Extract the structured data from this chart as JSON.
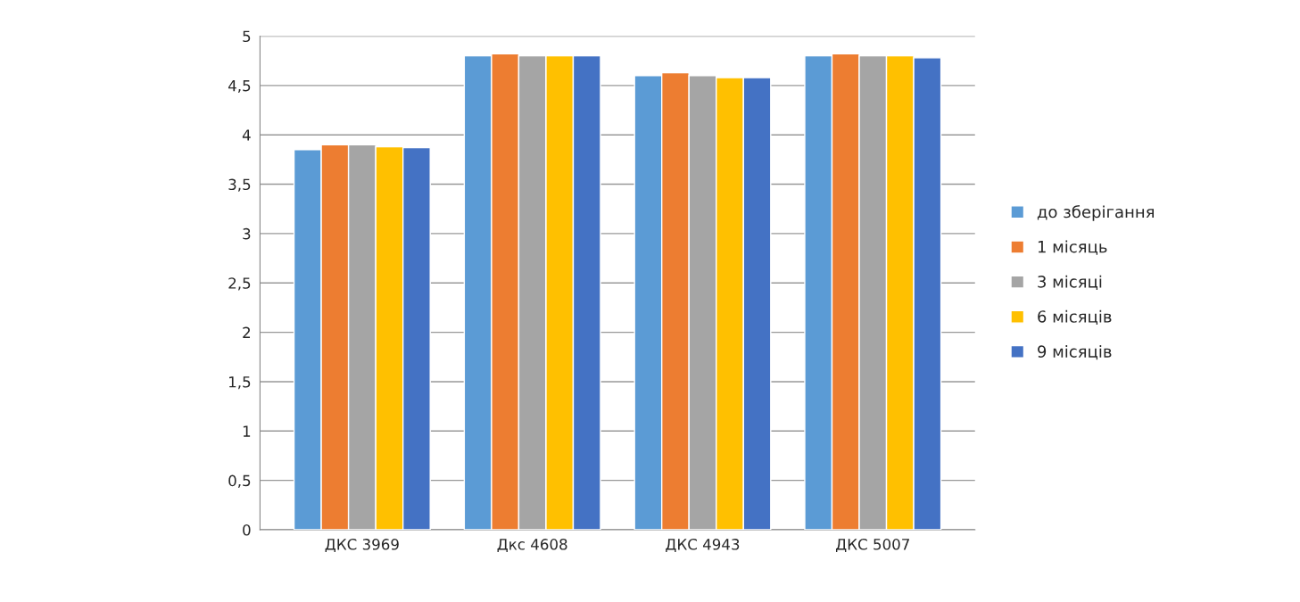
{
  "chart_data": {
    "type": "bar",
    "categories": [
      "ДКС 3969",
      "Дкс 4608",
      "ДКС 4943",
      "ДКС 5007"
    ],
    "series": [
      {
        "name": "до зберігання",
        "color": "#5b9bd5",
        "values": [
          3.85,
          4.8,
          4.6,
          4.8
        ]
      },
      {
        "name": "1 місяць",
        "color": "#ed7d31",
        "values": [
          3.9,
          4.82,
          4.63,
          4.82
        ]
      },
      {
        "name": "3 місяці",
        "color": "#a5a5a5",
        "values": [
          3.9,
          4.8,
          4.6,
          4.8
        ]
      },
      {
        "name": "6 місяців",
        "color": "#ffc000",
        "values": [
          3.88,
          4.8,
          4.58,
          4.8
        ]
      },
      {
        "name": "9 місяців",
        "color": "#4472c4",
        "values": [
          3.87,
          4.8,
          4.58,
          4.78
        ]
      }
    ],
    "ylim": [
      0,
      5
    ],
    "yticks": [
      0,
      {
        "value": 0.5,
        "label": "0,5"
      },
      1,
      {
        "value": 1.5,
        "label": "1,5"
      },
      2,
      {
        "value": 2.5,
        "label": "2,5"
      },
      3,
      {
        "value": 3.5,
        "label": "3,5"
      },
      4,
      {
        "value": 4.5,
        "label": "4,5"
      },
      5
    ],
    "grid": "y",
    "legend": "right"
  }
}
